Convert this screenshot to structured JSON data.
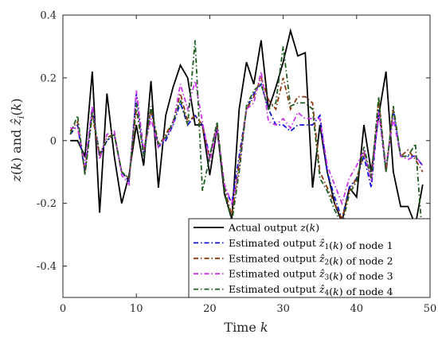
{
  "chart_data": {
    "type": "line",
    "xlabel": "Time k",
    "ylabel": "z(k) and ẑ_i(k)",
    "xlim": [
      0,
      50
    ],
    "ylim": [
      -0.5,
      0.4
    ],
    "xticks": [
      0,
      10,
      20,
      30,
      40,
      50
    ],
    "yticks": [
      0.4,
      0.2,
      0,
      -0.2,
      -0.4
    ],
    "ytick_labels": [
      "0.4",
      "0.2",
      "0",
      "-0.2",
      "-0.4"
    ],
    "grid": false,
    "legend_position": "bottom-right",
    "series": [
      {
        "name": "Actual output z(k)",
        "color": "#000000",
        "dash": "solid",
        "x": [
          1,
          2,
          3,
          4,
          5,
          6,
          7,
          8,
          9,
          10,
          11,
          12,
          13,
          14,
          15,
          16,
          17,
          18,
          19,
          20,
          21,
          22,
          23,
          24,
          25,
          26,
          27,
          28,
          29,
          30,
          31,
          32,
          33,
          34,
          35,
          36,
          37,
          38,
          39,
          40,
          41,
          42,
          43,
          44,
          45,
          46,
          47,
          48,
          49
        ],
        "y": [
          0.0,
          0.0,
          -0.05,
          0.22,
          -0.23,
          0.15,
          -0.05,
          -0.2,
          -0.11,
          0.05,
          -0.08,
          0.19,
          -0.15,
          0.08,
          0.17,
          0.24,
          0.2,
          0.05,
          0.05,
          -0.11,
          0.04,
          -0.17,
          -0.25,
          0.1,
          0.25,
          0.18,
          0.32,
          0.1,
          0.17,
          0.25,
          0.35,
          0.27,
          0.28,
          -0.15,
          0.05,
          -0.1,
          -0.2,
          -0.26,
          -0.15,
          -0.18,
          0.05,
          -0.1,
          0.08,
          0.22,
          -0.1,
          -0.21,
          -0.21,
          -0.27,
          -0.14
        ]
      },
      {
        "name": "Estimated output ẑ₁(k) of node 1",
        "color": "#1010d8",
        "dash": "dashdot",
        "x": [
          1,
          2,
          3,
          4,
          5,
          6,
          7,
          8,
          9,
          10,
          11,
          12,
          13,
          14,
          15,
          16,
          17,
          18,
          19,
          20,
          21,
          22,
          23,
          24,
          25,
          26,
          27,
          28,
          29,
          30,
          31,
          32,
          33,
          34,
          35,
          36,
          37,
          38,
          39,
          40,
          41,
          42,
          43,
          44,
          45,
          46,
          47,
          48,
          49
        ],
        "y": [
          0.02,
          0.05,
          -0.1,
          0.1,
          -0.05,
          0.0,
          0.02,
          -0.1,
          -0.13,
          0.15,
          -0.05,
          0.1,
          -0.02,
          0.0,
          0.05,
          0.12,
          0.05,
          0.08,
          0.05,
          -0.05,
          0.05,
          -0.15,
          -0.2,
          -0.05,
          0.1,
          0.15,
          0.18,
          0.1,
          0.05,
          0.05,
          0.03,
          0.05,
          0.05,
          0.05,
          0.08,
          -0.1,
          -0.18,
          -0.25,
          -0.15,
          -0.12,
          -0.05,
          -0.15,
          0.1,
          -0.1,
          0.1,
          -0.05,
          -0.05,
          -0.05,
          -0.08
        ]
      },
      {
        "name": "Estimated output ẑ₂(k) of node 2",
        "color": "#8b3a0f",
        "dash": "dashdot",
        "x": [
          1,
          2,
          3,
          4,
          5,
          6,
          7,
          8,
          9,
          10,
          11,
          12,
          13,
          14,
          15,
          16,
          17,
          18,
          19,
          20,
          21,
          22,
          23,
          24,
          25,
          26,
          27,
          28,
          29,
          30,
          31,
          32,
          33,
          34,
          35,
          36,
          37,
          38,
          39,
          40,
          41,
          42,
          43,
          44,
          45,
          46,
          47,
          48,
          49
        ],
        "y": [
          0.03,
          0.06,
          -0.1,
          0.08,
          -0.05,
          0.01,
          0.02,
          -0.1,
          -0.12,
          0.1,
          -0.04,
          0.1,
          -0.02,
          0.02,
          0.06,
          0.15,
          0.06,
          0.08,
          0.05,
          -0.06,
          0.05,
          -0.15,
          -0.24,
          -0.07,
          0.1,
          0.14,
          0.2,
          0.13,
          0.1,
          0.2,
          0.1,
          0.14,
          0.14,
          0.12,
          -0.1,
          -0.15,
          -0.2,
          -0.25,
          -0.16,
          -0.12,
          -0.04,
          -0.12,
          0.13,
          -0.1,
          0.1,
          -0.05,
          -0.03,
          -0.06,
          -0.1
        ]
      },
      {
        "name": "Estimated output ẑ₃(k) of node 3",
        "color": "#cc33ee",
        "dash": "dashdot",
        "x": [
          1,
          2,
          3,
          4,
          5,
          6,
          7,
          8,
          9,
          10,
          11,
          12,
          13,
          14,
          15,
          16,
          17,
          18,
          19,
          20,
          21,
          22,
          23,
          24,
          25,
          26,
          27,
          28,
          29,
          30,
          31,
          32,
          33,
          34,
          35,
          36,
          37,
          38,
          39,
          40,
          41,
          42,
          43,
          44,
          45,
          46,
          47,
          48,
          49
        ],
        "y": [
          0.04,
          0.04,
          -0.08,
          0.11,
          -0.06,
          0.02,
          0.03,
          -0.11,
          -0.14,
          0.16,
          -0.03,
          0.07,
          -0.02,
          0.01,
          0.05,
          0.18,
          0.1,
          0.19,
          0.06,
          -0.07,
          0.04,
          -0.14,
          -0.2,
          -0.1,
          0.1,
          0.12,
          0.22,
          0.06,
          0.05,
          0.07,
          0.04,
          0.09,
          0.07,
          0.07,
          0.07,
          -0.08,
          -0.14,
          -0.2,
          -0.12,
          -0.08,
          -0.03,
          -0.13,
          0.09,
          -0.08,
          0.07,
          -0.05,
          -0.06,
          -0.05,
          -0.08
        ]
      },
      {
        "name": "Estimated output ẑ₄(k) of node 4",
        "color": "#1f5c1f",
        "dash": "dashdot",
        "x": [
          1,
          2,
          3,
          4,
          5,
          6,
          7,
          8,
          9,
          10,
          11,
          12,
          13,
          14,
          15,
          16,
          17,
          18,
          19,
          20,
          21,
          22,
          23,
          24,
          25,
          26,
          27,
          28,
          29,
          30,
          31,
          32,
          33,
          34,
          35,
          36,
          37,
          38,
          39,
          40,
          41,
          42,
          43,
          44,
          45,
          46,
          47,
          48,
          49
        ],
        "y": [
          0.02,
          0.08,
          -0.11,
          0.09,
          -0.04,
          0.0,
          0.02,
          -0.1,
          -0.12,
          0.12,
          -0.05,
          0.11,
          -0.01,
          0.01,
          0.06,
          0.13,
          0.05,
          0.32,
          -0.16,
          -0.05,
          0.06,
          -0.16,
          -0.26,
          -0.1,
          0.11,
          0.16,
          0.18,
          0.1,
          0.12,
          0.3,
          0.11,
          0.12,
          0.12,
          0.1,
          -0.12,
          -0.16,
          -0.22,
          -0.27,
          -0.17,
          -0.13,
          -0.02,
          -0.12,
          0.14,
          -0.1,
          0.11,
          -0.05,
          -0.05,
          -0.01,
          -0.32
        ]
      }
    ]
  }
}
